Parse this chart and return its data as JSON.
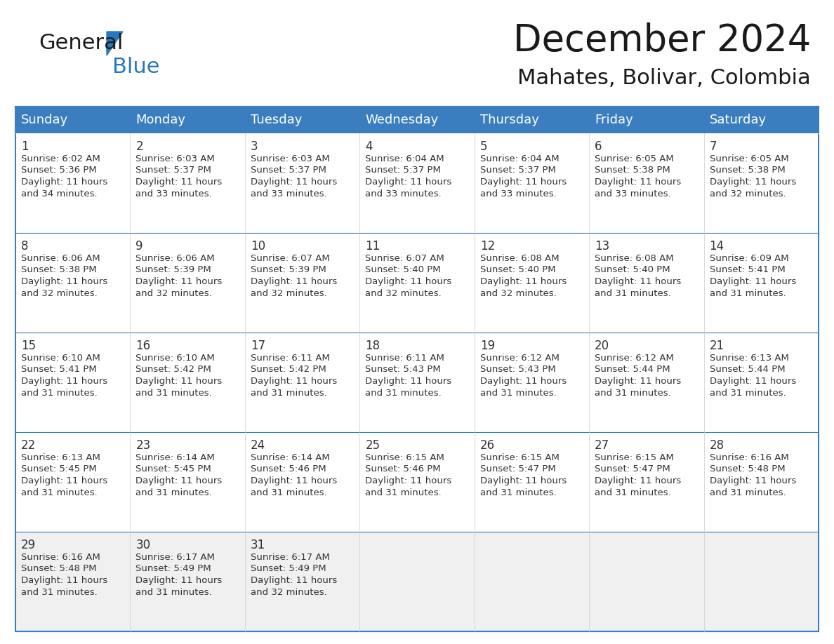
{
  "title": "December 2024",
  "subtitle": "Mahates, Bolivar, Colombia",
  "header_color": "#3a7ebf",
  "header_text_color": "#ffffff",
  "cell_bg_white": "#ffffff",
  "cell_bg_grey": "#f0f0f0",
  "border_color": "#3a7ebf",
  "text_color": "#333333",
  "days_of_week": [
    "Sunday",
    "Monday",
    "Tuesday",
    "Wednesday",
    "Thursday",
    "Friday",
    "Saturday"
  ],
  "weeks": [
    [
      {
        "day": 1,
        "sunrise": "6:02 AM",
        "sunset": "5:36 PM",
        "daylight_line1": "11 hours",
        "daylight_line2": "and 34 minutes."
      },
      {
        "day": 2,
        "sunrise": "6:03 AM",
        "sunset": "5:37 PM",
        "daylight_line1": "11 hours",
        "daylight_line2": "and 33 minutes."
      },
      {
        "day": 3,
        "sunrise": "6:03 AM",
        "sunset": "5:37 PM",
        "daylight_line1": "11 hours",
        "daylight_line2": "and 33 minutes."
      },
      {
        "day": 4,
        "sunrise": "6:04 AM",
        "sunset": "5:37 PM",
        "daylight_line1": "11 hours",
        "daylight_line2": "and 33 minutes."
      },
      {
        "day": 5,
        "sunrise": "6:04 AM",
        "sunset": "5:37 PM",
        "daylight_line1": "11 hours",
        "daylight_line2": "and 33 minutes."
      },
      {
        "day": 6,
        "sunrise": "6:05 AM",
        "sunset": "5:38 PM",
        "daylight_line1": "11 hours",
        "daylight_line2": "and 33 minutes."
      },
      {
        "day": 7,
        "sunrise": "6:05 AM",
        "sunset": "5:38 PM",
        "daylight_line1": "11 hours",
        "daylight_line2": "and 32 minutes."
      }
    ],
    [
      {
        "day": 8,
        "sunrise": "6:06 AM",
        "sunset": "5:38 PM",
        "daylight_line1": "11 hours",
        "daylight_line2": "and 32 minutes."
      },
      {
        "day": 9,
        "sunrise": "6:06 AM",
        "sunset": "5:39 PM",
        "daylight_line1": "11 hours",
        "daylight_line2": "and 32 minutes."
      },
      {
        "day": 10,
        "sunrise": "6:07 AM",
        "sunset": "5:39 PM",
        "daylight_line1": "11 hours",
        "daylight_line2": "and 32 minutes."
      },
      {
        "day": 11,
        "sunrise": "6:07 AM",
        "sunset": "5:40 PM",
        "daylight_line1": "11 hours",
        "daylight_line2": "and 32 minutes."
      },
      {
        "day": 12,
        "sunrise": "6:08 AM",
        "sunset": "5:40 PM",
        "daylight_line1": "11 hours",
        "daylight_line2": "and 32 minutes."
      },
      {
        "day": 13,
        "sunrise": "6:08 AM",
        "sunset": "5:40 PM",
        "daylight_line1": "11 hours",
        "daylight_line2": "and 31 minutes."
      },
      {
        "day": 14,
        "sunrise": "6:09 AM",
        "sunset": "5:41 PM",
        "daylight_line1": "11 hours",
        "daylight_line2": "and 31 minutes."
      }
    ],
    [
      {
        "day": 15,
        "sunrise": "6:10 AM",
        "sunset": "5:41 PM",
        "daylight_line1": "11 hours",
        "daylight_line2": "and 31 minutes."
      },
      {
        "day": 16,
        "sunrise": "6:10 AM",
        "sunset": "5:42 PM",
        "daylight_line1": "11 hours",
        "daylight_line2": "and 31 minutes."
      },
      {
        "day": 17,
        "sunrise": "6:11 AM",
        "sunset": "5:42 PM",
        "daylight_line1": "11 hours",
        "daylight_line2": "and 31 minutes."
      },
      {
        "day": 18,
        "sunrise": "6:11 AM",
        "sunset": "5:43 PM",
        "daylight_line1": "11 hours",
        "daylight_line2": "and 31 minutes."
      },
      {
        "day": 19,
        "sunrise": "6:12 AM",
        "sunset": "5:43 PM",
        "daylight_line1": "11 hours",
        "daylight_line2": "and 31 minutes."
      },
      {
        "day": 20,
        "sunrise": "6:12 AM",
        "sunset": "5:44 PM",
        "daylight_line1": "11 hours",
        "daylight_line2": "and 31 minutes."
      },
      {
        "day": 21,
        "sunrise": "6:13 AM",
        "sunset": "5:44 PM",
        "daylight_line1": "11 hours",
        "daylight_line2": "and 31 minutes."
      }
    ],
    [
      {
        "day": 22,
        "sunrise": "6:13 AM",
        "sunset": "5:45 PM",
        "daylight_line1": "11 hours",
        "daylight_line2": "and 31 minutes."
      },
      {
        "day": 23,
        "sunrise": "6:14 AM",
        "sunset": "5:45 PM",
        "daylight_line1": "11 hours",
        "daylight_line2": "and 31 minutes."
      },
      {
        "day": 24,
        "sunrise": "6:14 AM",
        "sunset": "5:46 PM",
        "daylight_line1": "11 hours",
        "daylight_line2": "and 31 minutes."
      },
      {
        "day": 25,
        "sunrise": "6:15 AM",
        "sunset": "5:46 PM",
        "daylight_line1": "11 hours",
        "daylight_line2": "and 31 minutes."
      },
      {
        "day": 26,
        "sunrise": "6:15 AM",
        "sunset": "5:47 PM",
        "daylight_line1": "11 hours",
        "daylight_line2": "and 31 minutes."
      },
      {
        "day": 27,
        "sunrise": "6:15 AM",
        "sunset": "5:47 PM",
        "daylight_line1": "11 hours",
        "daylight_line2": "and 31 minutes."
      },
      {
        "day": 28,
        "sunrise": "6:16 AM",
        "sunset": "5:48 PM",
        "daylight_line1": "11 hours",
        "daylight_line2": "and 31 minutes."
      }
    ],
    [
      {
        "day": 29,
        "sunrise": "6:16 AM",
        "sunset": "5:48 PM",
        "daylight_line1": "11 hours",
        "daylight_line2": "and 31 minutes."
      },
      {
        "day": 30,
        "sunrise": "6:17 AM",
        "sunset": "5:49 PM",
        "daylight_line1": "11 hours",
        "daylight_line2": "and 31 minutes."
      },
      {
        "day": 31,
        "sunrise": "6:17 AM",
        "sunset": "5:49 PM",
        "daylight_line1": "11 hours",
        "daylight_line2": "and 32 minutes."
      },
      null,
      null,
      null,
      null
    ]
  ],
  "logo_color_general": "#1a1a1a",
  "logo_color_blue": "#2878be",
  "title_fontsize": 38,
  "subtitle_fontsize": 22,
  "header_fontsize": 13,
  "day_num_fontsize": 12,
  "cell_text_fontsize": 9.5
}
